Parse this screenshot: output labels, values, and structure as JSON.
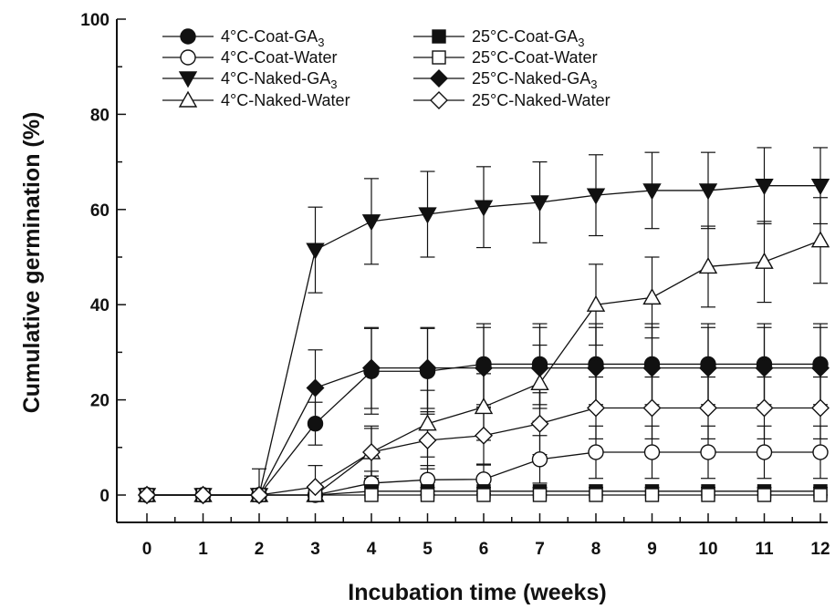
{
  "chart_data": {
    "type": "line",
    "xlabel": "Incubation time (weeks)",
    "ylabel": "Cumulative germination (%)",
    "xlim": [
      0,
      12
    ],
    "ylim": [
      0,
      100
    ],
    "xticks": [
      0,
      1,
      2,
      3,
      4,
      5,
      6,
      7,
      8,
      9,
      10,
      11,
      12
    ],
    "yticks": [
      0,
      20,
      40,
      60,
      80,
      100
    ],
    "grid": false,
    "legend_position": "top-left",
    "x": [
      0,
      1,
      2,
      3,
      4,
      5,
      6,
      7,
      8,
      9,
      10,
      11,
      12
    ],
    "series": [
      {
        "name": "4°C-Coat-GA",
        "sub": "3",
        "marker": "circle",
        "filled": true,
        "values": [
          0,
          0,
          0,
          15,
          26,
          26,
          27.5,
          27.5,
          27.5,
          27.5,
          27.5,
          27.5,
          27.5
        ],
        "errors": [
          0,
          0,
          0,
          4.5,
          9,
          9,
          8.5,
          8.5,
          8.5,
          8.5,
          8.5,
          8.5,
          8.5
        ]
      },
      {
        "name": "4°C-Coat-Water",
        "sub": "",
        "marker": "circle",
        "filled": false,
        "values": [
          0,
          0,
          0,
          0,
          2.5,
          3.2,
          3.3,
          7.5,
          9,
          9,
          9,
          9,
          9
        ],
        "errors": [
          0,
          0,
          0,
          0,
          2.5,
          3,
          3,
          5,
          5.5,
          5.5,
          5.5,
          5.5,
          5.5
        ]
      },
      {
        "name": "4°C-Naked-GA",
        "sub": "3",
        "marker": "triangle-down",
        "filled": true,
        "values": [
          0,
          0,
          0,
          51.5,
          57.5,
          59,
          60.5,
          61.5,
          63,
          64,
          64,
          65,
          65
        ],
        "errors": [
          0,
          0,
          0,
          9,
          9,
          9,
          8.5,
          8.5,
          8.5,
          8,
          8,
          8,
          8
        ]
      },
      {
        "name": "4°C-Naked-Water",
        "sub": "",
        "marker": "triangle-up",
        "filled": false,
        "values": [
          0,
          0,
          0,
          0,
          9,
          15,
          18.5,
          23.5,
          40,
          41.5,
          48,
          49,
          53.5
        ],
        "errors": [
          0,
          0,
          0,
          0,
          5,
          7,
          7,
          8,
          8.5,
          8.5,
          8.5,
          8.5,
          9
        ]
      },
      {
        "name": "25°C-Coat-GA",
        "sub": "3",
        "marker": "square",
        "filled": true,
        "values": [
          0,
          0,
          0,
          0,
          0.8,
          0.8,
          0.8,
          0.8,
          0.8,
          0.8,
          0.8,
          0.8,
          0.8
        ],
        "errors": [
          0,
          0,
          0,
          0,
          0.8,
          0.8,
          0.8,
          0.8,
          0.8,
          0.8,
          0.8,
          0.8,
          0.8
        ]
      },
      {
        "name": "25°C-Coat-Water",
        "sub": "",
        "marker": "square",
        "filled": false,
        "values": [
          0,
          0,
          0,
          0,
          0,
          0,
          0,
          0,
          0,
          0,
          0,
          0,
          0
        ],
        "errors": [
          0,
          0,
          0,
          0,
          0,
          0,
          0,
          0,
          0,
          0,
          0,
          0,
          0
        ]
      },
      {
        "name": "25°C-Naked-GA",
        "sub": "3",
        "marker": "diamond",
        "filled": true,
        "values": [
          0,
          0,
          0,
          22.5,
          26.7,
          26.7,
          26.7,
          26.7,
          26.7,
          26.7,
          26.7,
          26.7,
          26.7
        ],
        "errors": [
          0,
          0,
          0,
          8,
          8.5,
          8.5,
          8.5,
          8.5,
          8.5,
          8.5,
          8.5,
          8.5,
          8.5
        ]
      },
      {
        "name": "25°C-Naked-Water",
        "sub": "",
        "marker": "diamond",
        "filled": false,
        "values": [
          0,
          0,
          0,
          1.7,
          9,
          11.5,
          12.5,
          15,
          18.3,
          18.3,
          18.3,
          18.3,
          18.3
        ],
        "errors": [
          0,
          0,
          5.5,
          4.5,
          5.5,
          6,
          6,
          6.5,
          6.5,
          6.5,
          6.5,
          6.5,
          6.5
        ]
      }
    ]
  }
}
